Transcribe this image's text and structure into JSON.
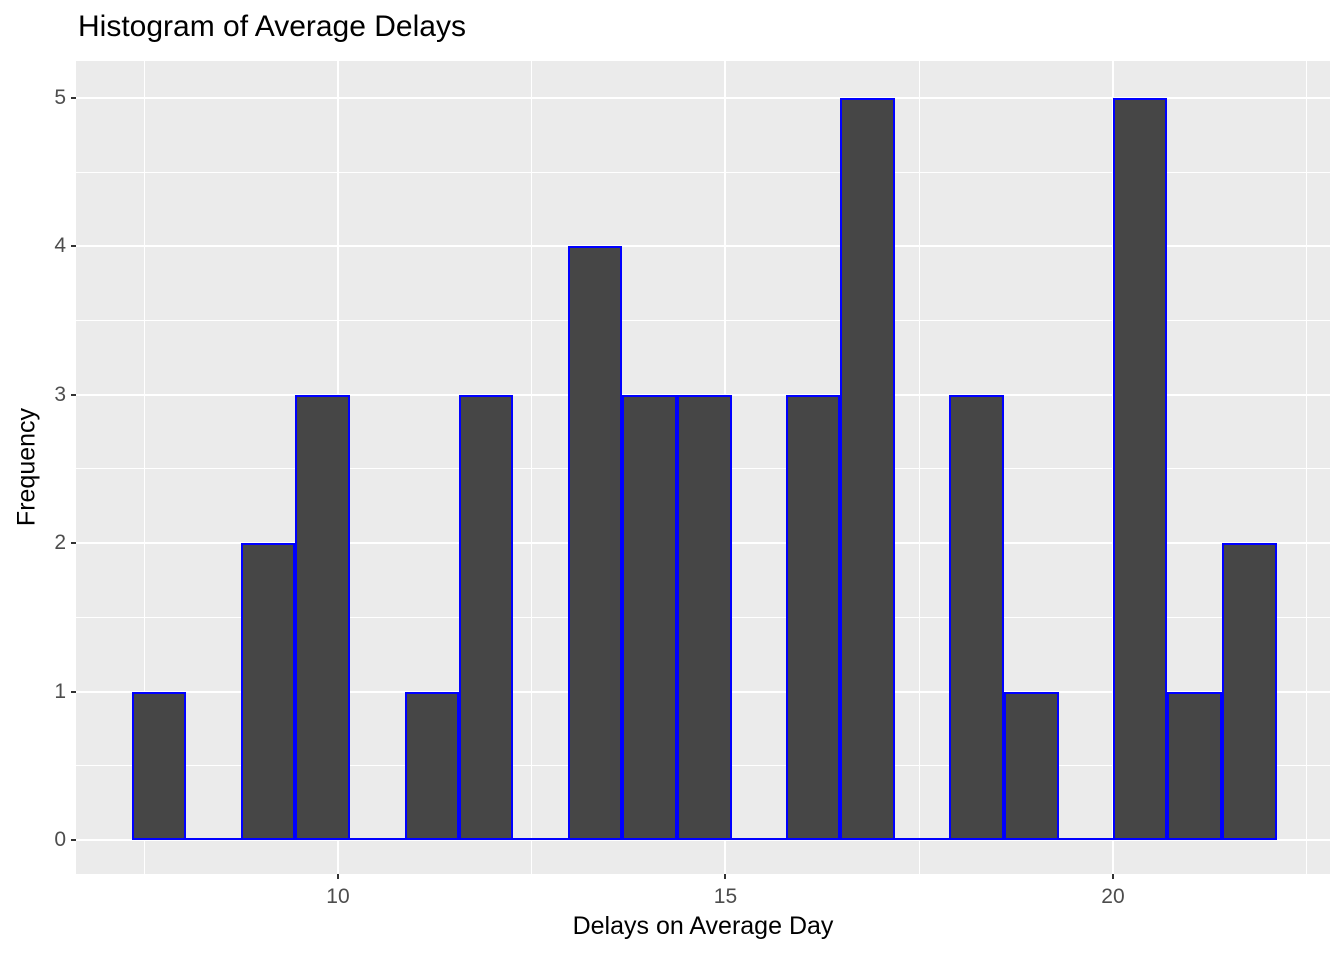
{
  "title": "Histogram of Average Delays",
  "chart_data": {
    "type": "bar",
    "subtype": "histogram",
    "title": "Histogram of Average Delays",
    "xlabel": "Delays on Average Day",
    "ylabel": "Frequency",
    "xlim": [
      6.62,
      22.8
    ],
    "ylim": [
      -0.23,
      5.25
    ],
    "x_major_ticks": [
      10,
      15,
      20
    ],
    "x_minor_gridlines": [
      7.5,
      12.5,
      17.5,
      22.5
    ],
    "y_major_ticks": [
      0,
      1,
      2,
      3,
      4,
      5
    ],
    "y_minor_gridlines": [
      0.5,
      1.5,
      2.5,
      3.5,
      4.5
    ],
    "grid": "on",
    "legend": "none",
    "bin_width": 0.7,
    "bins": [
      {
        "x0": 7.34,
        "x1": 8.04,
        "count": 1
      },
      {
        "x0": 8.04,
        "x1": 8.75,
        "count": 0
      },
      {
        "x0": 8.75,
        "x1": 9.45,
        "count": 2
      },
      {
        "x0": 9.45,
        "x1": 10.15,
        "count": 3
      },
      {
        "x0": 10.15,
        "x1": 10.86,
        "count": 0
      },
      {
        "x0": 10.86,
        "x1": 11.56,
        "count": 1
      },
      {
        "x0": 11.56,
        "x1": 12.26,
        "count": 3
      },
      {
        "x0": 12.26,
        "x1": 12.97,
        "count": 0
      },
      {
        "x0": 12.97,
        "x1": 13.67,
        "count": 4
      },
      {
        "x0": 13.67,
        "x1": 14.37,
        "count": 3
      },
      {
        "x0": 14.37,
        "x1": 15.08,
        "count": 3
      },
      {
        "x0": 15.08,
        "x1": 15.78,
        "count": 0
      },
      {
        "x0": 15.78,
        "x1": 16.48,
        "count": 3
      },
      {
        "x0": 16.48,
        "x1": 17.19,
        "count": 5
      },
      {
        "x0": 17.19,
        "x1": 17.89,
        "count": 0
      },
      {
        "x0": 17.89,
        "x1": 18.59,
        "count": 3
      },
      {
        "x0": 18.59,
        "x1": 19.3,
        "count": 1
      },
      {
        "x0": 19.3,
        "x1": 20.0,
        "count": 0
      },
      {
        "x0": 20.0,
        "x1": 20.7,
        "count": 5
      },
      {
        "x0": 20.7,
        "x1": 21.41,
        "count": 1
      },
      {
        "x0": 21.41,
        "x1": 22.11,
        "count": 2
      }
    ],
    "colors": {
      "panel_background": "#EBEBEB",
      "bar_fill": "#464646",
      "bar_border": "#0000FF",
      "gridline": "#FFFFFF",
      "axis_text": "#4D4D4D",
      "tick_mark": "#333333",
      "title_text": "#000000"
    }
  }
}
